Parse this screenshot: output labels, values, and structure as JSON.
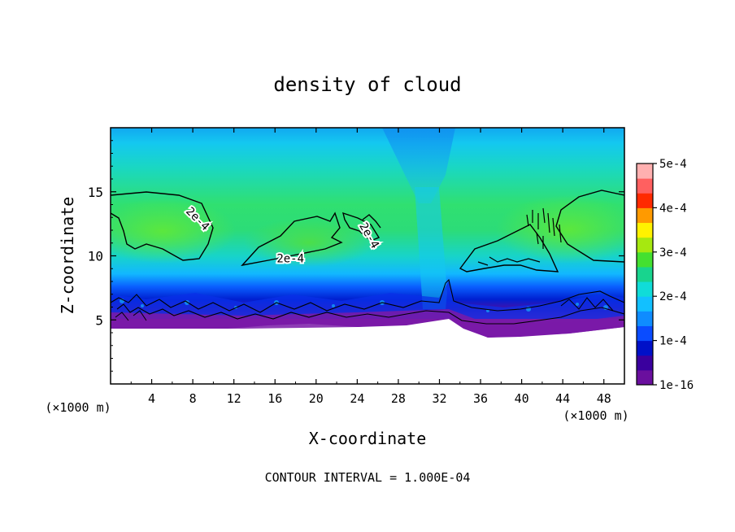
{
  "chart_data": {
    "type": "heatmap",
    "title": "density of cloud",
    "xlabel": "X-coordinate",
    "ylabel": "Z-coordinate",
    "x_unit": "(×1000 m)",
    "x_unit_right": "(×1000 m)",
    "xlim": [
      0,
      50
    ],
    "ylim": [
      0,
      20
    ],
    "xticks": [
      "4",
      "8",
      "12",
      "16",
      "20",
      "24",
      "28",
      "32",
      "36",
      "40",
      "44",
      "48"
    ],
    "yticks": [
      "5",
      "10",
      "15"
    ],
    "colorbar": {
      "ticks": [
        "5e-4",
        "4e-4",
        "3e-4",
        "2e-4",
        "1e-4",
        "1e-16"
      ],
      "min": 1e-16,
      "max": 0.0005
    },
    "contour_labels": [
      {
        "text": "2e-4",
        "x": 8.5,
        "z": 12.9
      },
      {
        "text": "2e-4",
        "x": 17.5,
        "z": 9.8
      },
      {
        "text": "2e-4",
        "x": 25.2,
        "z": 11.6
      }
    ],
    "note": "CONTOUR INTERVAL = 1.000E-04"
  },
  "colors": {
    "colorbar_stops": [
      "#6a0f9e",
      "#3a009e",
      "#0010c8",
      "#0a4cff",
      "#0f8cff",
      "#12c0ff",
      "#10dcd8",
      "#18d48e",
      "#44e030",
      "#a6e810",
      "#fff200",
      "#ff9a00",
      "#ff2a00",
      "#ff6060",
      "#ffb0b0"
    ]
  }
}
